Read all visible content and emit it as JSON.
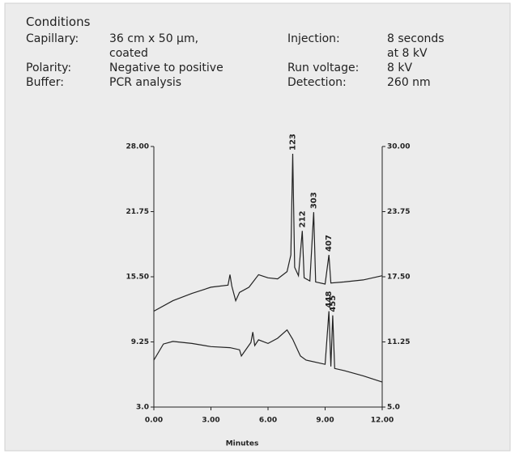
{
  "conditions": {
    "title": "Conditions",
    "left": [
      {
        "label": "Capillary:",
        "value": [
          "36 cm x 50 µm,",
          "coated"
        ]
      },
      {
        "label": "Polarity:",
        "value": [
          "Negative to positive"
        ]
      },
      {
        "label": "Buffer:",
        "value": [
          "PCR analysis"
        ]
      }
    ],
    "right": [
      {
        "label": "Injection:",
        "value": [
          "8 seconds",
          "at 8 kV"
        ]
      },
      {
        "label": "Run voltage:",
        "value": [
          "8 kV"
        ]
      },
      {
        "label": "Detection:",
        "value": [
          "260 nm"
        ]
      }
    ]
  },
  "chart_data": {
    "type": "line",
    "xlabel": "Minutes",
    "xlim": [
      0,
      12
    ],
    "xticks": [
      {
        "value": 0,
        "label": "0.00"
      },
      {
        "value": 3,
        "label": "3.00"
      },
      {
        "value": 6,
        "label": "6.00"
      },
      {
        "value": 9,
        "label": "9.00"
      },
      {
        "value": 12,
        "label": "12.00"
      }
    ],
    "ylim": [
      3,
      28
    ],
    "yticks": [
      {
        "value": 3,
        "label": "3.0"
      },
      9.25,
      {
        "value": 15.5,
        "label": "15.50"
      },
      21.75,
      {
        "value": 28,
        "label": "28.00"
      }
    ],
    "y2lim": [
      5,
      30
    ],
    "y2ticks": [
      {
        "value": 5,
        "label": "5.0"
      },
      11.25,
      {
        "value": 17.5,
        "label": "17.50"
      },
      23.75,
      {
        "value": 30,
        "label": "30.00"
      }
    ],
    "series": [
      {
        "color": "#222222",
        "x": [
          0,
          1,
          2,
          3,
          3.9,
          4.0,
          4.1,
          4.3,
          4.5,
          5.0,
          5.5,
          6.0,
          6.5,
          7.0,
          7.2,
          7.3,
          7.4,
          7.6,
          7.8,
          7.9,
          8.2,
          8.4,
          8.5,
          9.0,
          9.2,
          9.3,
          10,
          11,
          12
        ],
        "values": [
          12.2,
          13.2,
          13.9,
          14.5,
          14.7,
          15.7,
          14.6,
          13.2,
          14.0,
          14.5,
          15.7,
          15.4,
          15.3,
          16.0,
          17.6,
          27.3,
          16.4,
          15.6,
          19.9,
          15.4,
          15.1,
          21.7,
          15.0,
          14.8,
          17.6,
          14.9,
          15.0,
          15.2,
          15.6
        ]
      },
      {
        "color": "#222222",
        "axis": "y2",
        "x": [
          0,
          0.5,
          1,
          2,
          3,
          4,
          4.5,
          4.6,
          5.1,
          5.2,
          5.3,
          5.5,
          6,
          6.5,
          7,
          7.3,
          7.6,
          7.7,
          8,
          9,
          9.2,
          9.3,
          9.4,
          9.5,
          10,
          11,
          12
        ],
        "values": [
          9.5,
          11.05,
          11.3,
          11.1,
          10.8,
          10.7,
          10.5,
          9.9,
          11.2,
          12.2,
          10.9,
          11.45,
          11.1,
          11.6,
          12.4,
          11.5,
          10.3,
          9.9,
          9.5,
          9.1,
          14.2,
          8.9,
          13.8,
          8.7,
          8.5,
          8.0,
          7.4
        ]
      }
    ],
    "annotations": [
      {
        "text": "123",
        "x": 7.3,
        "y": 27.3
      },
      {
        "text": "212",
        "x": 7.8,
        "y": 19.9
      },
      {
        "text": "303",
        "x": 8.4,
        "y": 21.7
      },
      {
        "text": "407",
        "x": 9.2,
        "y": 17.6
      },
      {
        "text": "448",
        "x": 9.2,
        "y": 14.2,
        "axis": "y2"
      },
      {
        "text": "455",
        "x": 9.4,
        "y": 13.8,
        "axis": "y2"
      }
    ]
  }
}
